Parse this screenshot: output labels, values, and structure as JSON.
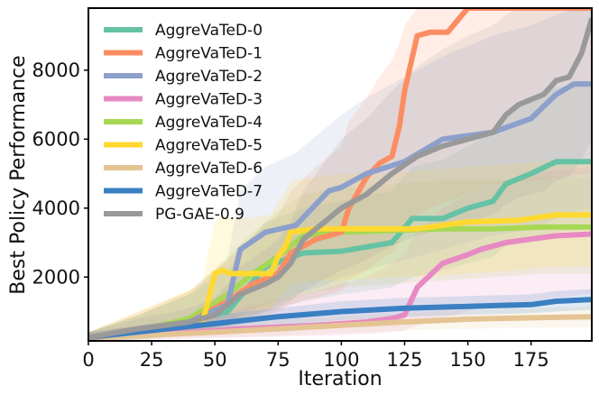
{
  "chart_data": {
    "type": "line",
    "title": "",
    "xlabel": "Iteration",
    "ylabel": "Best Policy Performance",
    "xlim": [
      0,
      199
    ],
    "ylim": [
      150,
      9800
    ],
    "xticks": [
      0,
      25,
      50,
      75,
      100,
      125,
      150,
      175
    ],
    "yticks": [
      2000,
      4000,
      6000,
      8000
    ],
    "grid": false,
    "legend_position": "top-left",
    "series": [
      {
        "name": "AggreVaTeD-0",
        "color": "#66c2a5",
        "x": [
          0,
          20,
          40,
          55,
          62,
          70,
          85,
          100,
          120,
          128,
          140,
          150,
          160,
          165,
          175,
          185,
          199
        ],
        "y": [
          250,
          450,
          700,
          1000,
          1600,
          2300,
          2700,
          2750,
          3000,
          3700,
          3700,
          4000,
          4200,
          4700,
          5000,
          5350,
          5350
        ],
        "band_low": [
          150,
          200,
          300,
          450,
          700,
          1000,
          1300,
          1500,
          1700,
          2000,
          2200,
          2400,
          2600,
          2900,
          3100,
          3300,
          3400
        ],
        "band_high": [
          400,
          900,
          1500,
          2200,
          2900,
          3600,
          4000,
          4200,
          4500,
          5200,
          5400,
          5800,
          6200,
          6800,
          7200,
          7500,
          7600
        ]
      },
      {
        "name": "AggreVaTeD-1",
        "color": "#fc8d62",
        "x": [
          0,
          20,
          40,
          55,
          65,
          75,
          80,
          90,
          100,
          103,
          110,
          115,
          120,
          123,
          125,
          130,
          135,
          142,
          150,
          155,
          160,
          199
        ],
        "y": [
          250,
          500,
          700,
          1300,
          1800,
          2100,
          2700,
          3100,
          3300,
          4000,
          4900,
          5300,
          5500,
          6400,
          7400,
          9000,
          9100,
          9100,
          9800,
          9800,
          9800,
          9800
        ],
        "band_low": [
          150,
          250,
          400,
          600,
          800,
          1000,
          1200,
          1400,
          1600,
          1900,
          2200,
          2500,
          2700,
          3000,
          3400,
          3800,
          4000,
          4200,
          4400,
          4600,
          4700,
          5000
        ],
        "band_high": [
          400,
          1000,
          1600,
          2500,
          3200,
          3800,
          4500,
          5200,
          5800,
          6500,
          7200,
          7800,
          8300,
          8800,
          9300,
          9800,
          9800,
          9800,
          9800,
          9800,
          9800,
          9800
        ]
      },
      {
        "name": "AggreVaTeD-2",
        "color": "#8da0cb",
        "x": [
          0,
          20,
          40,
          55,
          60,
          70,
          82,
          95,
          100,
          110,
          125,
          140,
          150,
          160,
          175,
          185,
          192,
          199
        ],
        "y": [
          250,
          450,
          700,
          1200,
          2800,
          3300,
          3500,
          4500,
          4600,
          5000,
          5350,
          6000,
          6100,
          6200,
          6600,
          7300,
          7600,
          7600
        ],
        "band_low": [
          150,
          200,
          350,
          500,
          900,
          1200,
          1500,
          1800,
          2000,
          2200,
          2500,
          2800,
          3000,
          3200,
          3400,
          3700,
          3900,
          4000
        ],
        "band_high": [
          400,
          900,
          1500,
          2500,
          4500,
          5200,
          5600,
          6400,
          6700,
          7200,
          7800,
          8400,
          8700,
          9000,
          9300,
          9600,
          9800,
          9800
        ]
      },
      {
        "name": "AggreVaTeD-3",
        "color": "#e78ac3",
        "x": [
          0,
          30,
          60,
          90,
          110,
          120,
          125,
          130,
          140,
          150,
          155,
          165,
          175,
          185,
          199
        ],
        "y": [
          250,
          350,
          500,
          600,
          700,
          800,
          900,
          1700,
          2400,
          2650,
          2800,
          3000,
          3100,
          3200,
          3250
        ],
        "band_low": [
          150,
          200,
          250,
          300,
          350,
          400,
          450,
          600,
          800,
          1000,
          1100,
          1200,
          1300,
          1400,
          1500
        ],
        "band_high": [
          400,
          700,
          1100,
          1600,
          2000,
          2400,
          2700,
          3300,
          4000,
          4400,
          4600,
          4800,
          5000,
          5100,
          5200
        ]
      },
      {
        "name": "AggreVaTeD-4",
        "color": "#a6d854",
        "x": [
          0,
          20,
          40,
          55,
          65,
          75,
          85,
          100,
          120,
          140,
          160,
          180,
          199
        ],
        "y": [
          250,
          450,
          800,
          1500,
          2100,
          2600,
          3200,
          3300,
          3350,
          3400,
          3400,
          3450,
          3450
        ],
        "band_low": [
          150,
          200,
          350,
          600,
          900,
          1200,
          1500,
          1700,
          1800,
          1900,
          2000,
          2100,
          2100
        ],
        "band_high": [
          400,
          900,
          1600,
          2600,
          3300,
          3900,
          4400,
          4600,
          4700,
          4800,
          4800,
          4900,
          4900
        ],
        "draw_after_series": "AggreVaTeD-0"
      },
      {
        "name": "AggreVaTeD-5",
        "color": "#ffd92f",
        "x": [
          0,
          20,
          45,
          47,
          50,
          53,
          56,
          60,
          72,
          75,
          78,
          80,
          90,
          100,
          120,
          130,
          150,
          170,
          185,
          199
        ],
        "y": [
          250,
          450,
          700,
          1200,
          2100,
          2200,
          2100,
          2100,
          2100,
          2600,
          2900,
          3300,
          3400,
          3400,
          3400,
          3400,
          3600,
          3650,
          3800,
          3800
        ],
        "band_low": [
          150,
          200,
          350,
          500,
          800,
          900,
          900,
          1000,
          1100,
          1400,
          1600,
          1800,
          1900,
          1900,
          2000,
          2000,
          2100,
          2200,
          2300,
          2300
        ],
        "band_high": [
          400,
          1000,
          1800,
          2600,
          3600,
          3800,
          3700,
          3700,
          3800,
          4200,
          4500,
          4800,
          4900,
          5000,
          5000,
          5100,
          5200,
          5300,
          5400,
          5400
        ]
      },
      {
        "name": "AggreVaTeD-6",
        "color": "#e5c494",
        "x": [
          0,
          25,
          50,
          75,
          100,
          125,
          150,
          175,
          199
        ],
        "y": [
          250,
          320,
          400,
          500,
          600,
          700,
          780,
          820,
          850
        ],
        "band_low": [
          150,
          200,
          250,
          300,
          380,
          450,
          500,
          530,
          550
        ],
        "band_high": [
          400,
          500,
          600,
          750,
          850,
          950,
          1050,
          1100,
          1150
        ]
      },
      {
        "name": "AggreVaTeD-7",
        "color": "#3a7fc1",
        "x": [
          0,
          25,
          50,
          75,
          100,
          125,
          150,
          175,
          185,
          199
        ],
        "y": [
          250,
          450,
          650,
          850,
          1000,
          1100,
          1150,
          1200,
          1300,
          1350
        ],
        "band_low": [
          150,
          300,
          450,
          600,
          750,
          850,
          900,
          950,
          1000,
          1050
        ],
        "band_high": [
          400,
          650,
          900,
          1100,
          1300,
          1400,
          1450,
          1500,
          1600,
          1650
        ]
      },
      {
        "name": "PG-GAE-0.9",
        "color": "#999999",
        "x": [
          0,
          20,
          40,
          50,
          55,
          60,
          70,
          75,
          80,
          85,
          90,
          95,
          100,
          110,
          120,
          130,
          140,
          150,
          160,
          165,
          170,
          180,
          185,
          190,
          195,
          199
        ],
        "y": [
          250,
          500,
          700,
          900,
          1200,
          1500,
          1800,
          2000,
          2400,
          3100,
          3400,
          3700,
          4000,
          4400,
          5000,
          5500,
          5800,
          6000,
          6200,
          6700,
          7000,
          7300,
          7700,
          7800,
          8500,
          9500
        ],
        "band_low": [
          150,
          300,
          450,
          550,
          700,
          850,
          1000,
          1100,
          1300,
          1600,
          1800,
          2000,
          2200,
          2500,
          2900,
          3200,
          3400,
          3600,
          3800,
          4100,
          4300,
          4500,
          4800,
          4900,
          5400,
          6000
        ],
        "band_high": [
          400,
          800,
          1100,
          1400,
          1800,
          2300,
          2800,
          3100,
          3600,
          4500,
          5000,
          5500,
          6000,
          6600,
          7400,
          8100,
          8600,
          9000,
          9300,
          9600,
          9800,
          9800,
          9800,
          9800,
          9800,
          9800
        ]
      }
    ]
  }
}
